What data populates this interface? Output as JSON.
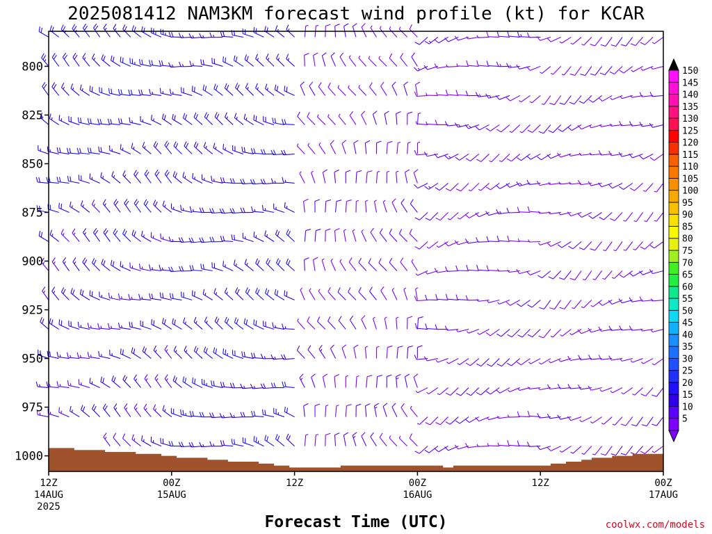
{
  "chart_data": {
    "type": "wind-barb",
    "title": "2025081412 NAM3KM forecast wind profile (kt) for KCAR",
    "xlabel": "Forecast Time (UTC)",
    "ylabel": "",
    "y_reversed": true,
    "y_unit_values": "hPa",
    "y_ticks": [
      800,
      825,
      850,
      875,
      900,
      925,
      950,
      975,
      1000
    ],
    "y_range": [
      782,
      1008
    ],
    "x_ticks": [
      {
        "hour": 0,
        "lines": [
          "12Z",
          "14AUG",
          "2025"
        ]
      },
      {
        "hour": 12,
        "lines": [
          "00Z",
          "15AUG"
        ]
      },
      {
        "hour": 24,
        "lines": [
          "12Z"
        ]
      },
      {
        "hour": 36,
        "lines": [
          "00Z",
          "16AUG"
        ]
      },
      {
        "hour": 48,
        "lines": [
          "12Z"
        ]
      },
      {
        "hour": 60,
        "lines": [
          "00Z",
          "17AUG"
        ]
      }
    ],
    "x_range_hours": [
      0,
      60
    ],
    "x_step_hours": 1,
    "colorbar": {
      "levels": [
        5,
        10,
        15,
        20,
        25,
        30,
        35,
        40,
        45,
        50,
        55,
        60,
        65,
        70,
        75,
        80,
        85,
        90,
        95,
        100,
        105,
        110,
        115,
        120,
        125,
        130,
        135,
        140,
        145,
        150
      ],
      "colors": [
        "#8000ff",
        "#5a00ff",
        "#3000e8",
        "#1f10ff",
        "#2030ff",
        "#2050ff",
        "#1a70ff",
        "#1890ff",
        "#10b0ff",
        "#10d8f0",
        "#10e8c8",
        "#10e890",
        "#20f040",
        "#40f020",
        "#a0f020",
        "#e8f010",
        "#f8f800",
        "#f8e000",
        "#f8c000",
        "#f8a800",
        "#f89000",
        "#f87800",
        "#f86000",
        "#f83000",
        "#ff0000",
        "#ff1050",
        "#ff1080",
        "#ff10b0",
        "#ff10d8",
        "#ff10ff"
      ],
      "top_arrow_color": "#000000",
      "bottom_arrow_color": "#8000ff"
    },
    "terrain": {
      "color": "#a0522d",
      "surface_pressure": [
        [
          0,
          996
        ],
        [
          2.5,
          996
        ],
        [
          2.5,
          997
        ],
        [
          5.5,
          997
        ],
        [
          5.5,
          998
        ],
        [
          8.5,
          998
        ],
        [
          8.5,
          999
        ],
        [
          11,
          999
        ],
        [
          11,
          1000
        ],
        [
          12.5,
          1000
        ],
        [
          12.5,
          1001
        ],
        [
          15.5,
          1001
        ],
        [
          15.5,
          1002
        ],
        [
          17.5,
          1002
        ],
        [
          17.5,
          1003
        ],
        [
          20.5,
          1003
        ],
        [
          20.5,
          1004
        ],
        [
          22,
          1004
        ],
        [
          22,
          1005
        ],
        [
          23.5,
          1005
        ],
        [
          23.5,
          1006
        ],
        [
          28.5,
          1006
        ],
        [
          28.5,
          1005
        ],
        [
          38.5,
          1005
        ],
        [
          38.5,
          1006
        ],
        [
          39.5,
          1006
        ],
        [
          39.5,
          1005
        ],
        [
          49,
          1005
        ],
        [
          49,
          1004
        ],
        [
          50.5,
          1004
        ],
        [
          50.5,
          1003
        ],
        [
          52,
          1003
        ],
        [
          52,
          1002
        ],
        [
          53,
          1002
        ],
        [
          53,
          1001
        ],
        [
          55,
          1001
        ],
        [
          55,
          1000
        ],
        [
          57,
          1000
        ],
        [
          57,
          999
        ],
        [
          60,
          999
        ]
      ]
    },
    "wind_field": {
      "note": "hourly wind barbs at pressure levels; speed in kt, direction = meteorological degrees (from)",
      "levels": [
        785,
        800,
        815,
        830,
        845,
        860,
        875,
        890,
        905,
        920,
        935,
        950,
        965,
        980,
        995
      ],
      "regimes": [
        {
          "hours": [
            0,
            12
          ],
          "dir": 300,
          "speed_top": 20,
          "speed_bottom": 15
        },
        {
          "hours": [
            12,
            24
          ],
          "dir": 290,
          "speed_top": 18,
          "speed_bottom": 20
        },
        {
          "hours": [
            24,
            36
          ],
          "dir": 340,
          "speed_top": 8,
          "speed_bottom": 10
        },
        {
          "hours": [
            36,
            48
          ],
          "dir": 250,
          "speed_top": 10,
          "speed_bottom": 9
        },
        {
          "hours": [
            48,
            60
          ],
          "dir": 240,
          "speed_top": 9,
          "speed_bottom": 8
        }
      ]
    }
  },
  "credit": "coolwx.com/models"
}
